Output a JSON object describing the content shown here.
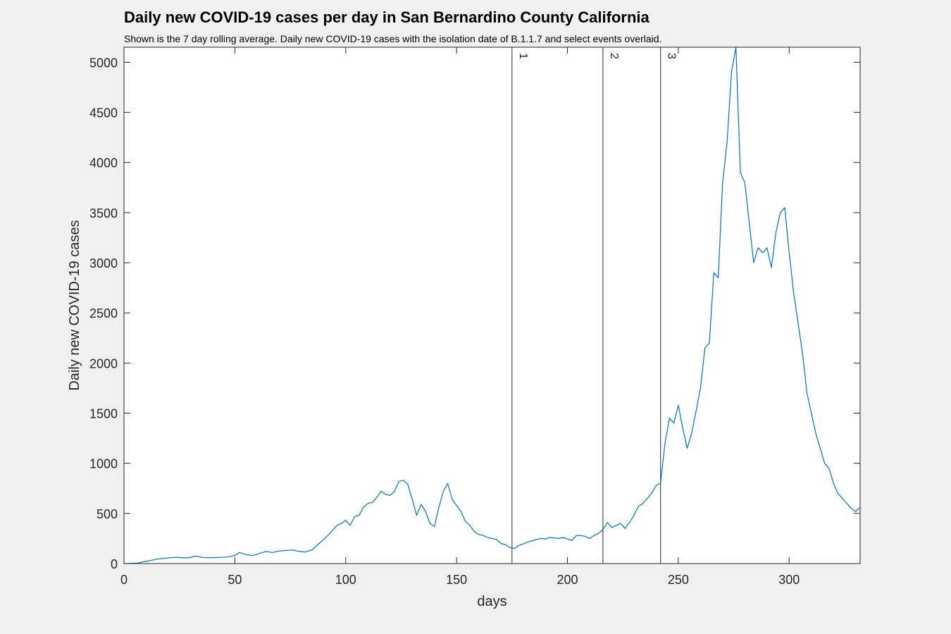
{
  "title": "Daily new COVID-19 cases per day in San Bernardino County California",
  "subtitle": "Shown is the 7 day rolling average. Daily new COVID-19 cases with the isolation date of B.1.1.7 and select events overlaid.",
  "chart_data": {
    "type": "line",
    "xlabel": "days",
    "ylabel": "Daily new COVID-19 cases",
    "xlim": [
      0,
      332
    ],
    "ylim": [
      0,
      5150
    ],
    "xticks": [
      0,
      50,
      100,
      150,
      200,
      250,
      300
    ],
    "yticks": [
      0,
      500,
      1000,
      1500,
      2000,
      2500,
      3000,
      3500,
      4000,
      4500,
      5000
    ],
    "grid": false,
    "line_color": "#0072bd",
    "events": [
      {
        "label": "1",
        "x": 175
      },
      {
        "label": "2",
        "x": 216
      },
      {
        "label": "3",
        "x": 242
      }
    ],
    "series": [
      {
        "x": [
          0,
          3,
          6,
          9,
          12,
          15,
          18,
          21,
          24,
          27,
          30,
          32,
          35,
          38,
          41,
          44,
          47,
          50,
          52,
          55,
          58,
          61,
          64,
          67,
          70,
          73,
          76,
          79,
          82,
          85,
          88,
          90,
          92,
          94,
          96,
          98,
          100,
          102,
          104,
          106,
          108,
          110,
          112,
          114,
          116,
          118,
          120,
          122,
          124,
          126,
          128,
          130,
          132,
          134,
          136,
          138,
          140,
          142,
          144,
          146,
          148,
          150,
          152,
          154,
          156,
          158,
          160,
          162,
          164,
          166,
          168,
          170,
          172,
          174,
          176,
          178,
          180,
          182,
          184,
          186,
          188,
          190,
          192,
          194,
          196,
          198,
          200,
          202,
          204,
          206,
          208,
          210,
          212,
          214,
          216,
          218,
          220,
          222,
          224,
          226,
          228,
          230,
          232,
          234,
          236,
          238,
          240,
          242,
          244,
          246,
          248,
          250,
          252,
          254,
          256,
          258,
          260,
          262,
          264,
          266,
          268,
          270,
          272,
          274,
          276,
          278,
          280,
          282,
          284,
          286,
          288,
          290,
          292,
          294,
          296,
          298,
          300,
          302,
          304,
          306,
          308,
          310,
          312,
          314,
          316,
          318,
          320,
          322,
          324,
          326,
          328,
          330,
          332
        ],
        "y": [
          0,
          2,
          5,
          18,
          30,
          45,
          52,
          58,
          62,
          56,
          60,
          75,
          62,
          58,
          60,
          62,
          65,
          80,
          110,
          90,
          80,
          100,
          120,
          110,
          125,
          130,
          135,
          120,
          115,
          140,
          200,
          240,
          280,
          330,
          380,
          400,
          430,
          380,
          470,
          480,
          560,
          600,
          610,
          660,
          720,
          690,
          680,
          720,
          820,
          830,
          790,
          640,
          480,
          590,
          520,
          400,
          370,
          560,
          720,
          800,
          640,
          580,
          520,
          420,
          380,
          320,
          290,
          280,
          260,
          250,
          240,
          200,
          190,
          160,
          150,
          180,
          195,
          215,
          225,
          240,
          250,
          245,
          260,
          255,
          250,
          260,
          245,
          230,
          280,
          280,
          270,
          250,
          280,
          300,
          340,
          410,
          360,
          380,
          400,
          350,
          410,
          480,
          570,
          600,
          650,
          700,
          780,
          800,
          1200,
          1450,
          1400,
          1580,
          1350,
          1150,
          1300,
          1520,
          1750,
          2150,
          2200,
          2900,
          2850,
          3800,
          4200,
          4900,
          5150,
          3900,
          3800,
          3400,
          3000,
          3150,
          3100,
          3150,
          2950,
          3300,
          3500,
          3550,
          3100,
          2700,
          2400,
          2100,
          1700,
          1500,
          1300,
          1150,
          1000,
          950,
          800,
          700,
          650,
          600,
          550,
          520,
          560
        ]
      }
    ]
  }
}
